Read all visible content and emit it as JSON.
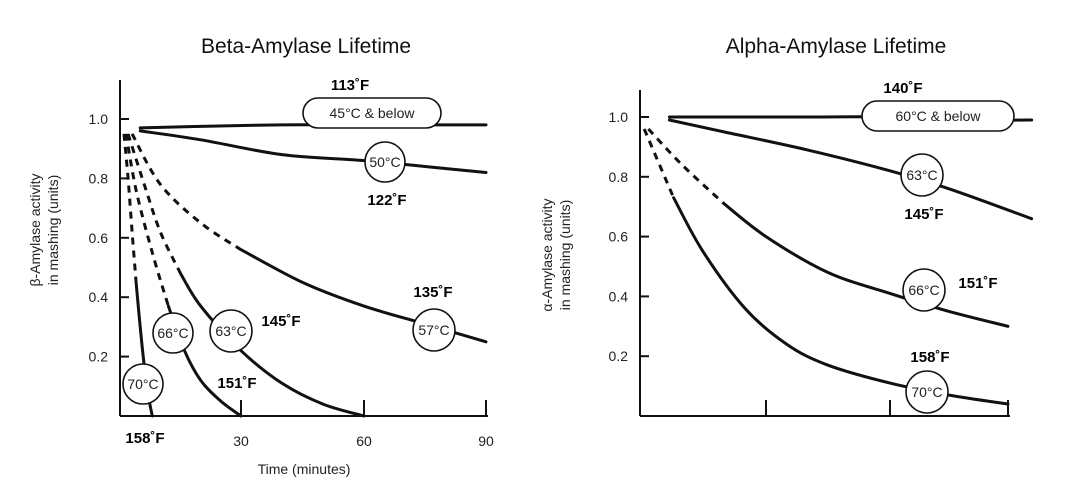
{
  "chart_data": [
    {
      "type": "line",
      "title": "Beta-Amylase Lifetime",
      "ylabel_line1": "β-Amylase activity",
      "ylabel_line2": "in mashing (units)",
      "xlabel": "Time (minutes)",
      "xlim": [
        0,
        90
      ],
      "ylim": [
        0,
        1.1
      ],
      "x_ticks": [
        "30",
        "60",
        "90"
      ],
      "y_ticks": [
        "1.0",
        "0.8",
        "0.6",
        "0.4",
        "0.2"
      ],
      "y_tick_values": [
        1.0,
        0.8,
        0.6,
        0.4,
        0.2
      ],
      "x_tick_values": [
        30,
        60,
        90
      ],
      "series": [
        {
          "name": "45°C & below",
          "fahrenheit": "113˚F",
          "x": [
            5,
            20,
            40,
            60,
            75,
            90
          ],
          "y": [
            0.97,
            0.975,
            0.98,
            0.98,
            0.98,
            0.98
          ]
        },
        {
          "name": "50°C",
          "fahrenheit": "122˚F",
          "x": [
            5,
            20,
            40,
            60,
            75,
            90
          ],
          "y": [
            0.96,
            0.93,
            0.88,
            0.86,
            0.84,
            0.82
          ]
        },
        {
          "name": "57°C",
          "fahrenheit": "135˚F",
          "x": [
            3,
            10,
            20,
            30,
            45,
            60,
            75,
            90
          ],
          "y": [
            0.95,
            0.78,
            0.65,
            0.56,
            0.45,
            0.37,
            0.31,
            0.25
          ]
        },
        {
          "name": "63°C",
          "fahrenheit": "145˚F",
          "x": [
            2,
            6,
            10,
            15,
            20,
            30,
            40,
            50,
            60
          ],
          "y": [
            0.95,
            0.78,
            0.62,
            0.48,
            0.37,
            0.22,
            0.11,
            0.04,
            0.0
          ]
        },
        {
          "name": "66°C",
          "fahrenheit": "151˚F",
          "x": [
            1.5,
            4,
            8,
            12,
            16,
            20,
            25,
            30
          ],
          "y": [
            0.95,
            0.76,
            0.55,
            0.37,
            0.22,
            0.12,
            0.05,
            0.0
          ]
        },
        {
          "name": "70°C",
          "fahrenheit": "158˚F",
          "x": [
            1,
            2,
            3,
            4,
            5,
            6,
            7,
            8
          ],
          "y": [
            0.95,
            0.8,
            0.62,
            0.45,
            0.3,
            0.17,
            0.07,
            0.0
          ]
        }
      ]
    },
    {
      "type": "line",
      "title": "Alpha-Amylase Lifetime",
      "ylabel_line1": "α-Amylase activity",
      "ylabel_line2": "in mashing (units)",
      "xlabel": "",
      "xlim": [
        0,
        90
      ],
      "ylim": [
        0,
        1.1
      ],
      "x_ticks": [
        "",
        "",
        ""
      ],
      "y_ticks": [
        "1.0",
        "0.8",
        "0.6",
        "0.4",
        "0.2"
      ],
      "y_tick_values": [
        1.0,
        0.8,
        0.6,
        0.4,
        0.2
      ],
      "x_tick_values": [
        30,
        60,
        90
      ],
      "series": [
        {
          "name": "60°C & below",
          "fahrenheit": "140˚F",
          "x": [
            7,
            20,
            40,
            60,
            75,
            96
          ],
          "y": [
            1.0,
            1.0,
            1.0,
            1.0,
            0.99,
            0.99
          ]
        },
        {
          "name": "63°C",
          "fahrenheit": "145˚F",
          "x": [
            7,
            20,
            40,
            60,
            75,
            96
          ],
          "y": [
            0.99,
            0.95,
            0.89,
            0.82,
            0.76,
            0.66
          ]
        },
        {
          "name": "66°C",
          "fahrenheit": "151˚F",
          "x": [
            2,
            10,
            20,
            30,
            45,
            60,
            75,
            90
          ],
          "y": [
            0.96,
            0.84,
            0.71,
            0.6,
            0.48,
            0.41,
            0.35,
            0.3
          ]
        },
        {
          "name": "70°C",
          "fahrenheit": "158˚F",
          "x": [
            1,
            8,
            15,
            25,
            35,
            45,
            60,
            75,
            90
          ],
          "y": [
            0.96,
            0.73,
            0.55,
            0.36,
            0.24,
            0.17,
            0.11,
            0.07,
            0.04
          ]
        }
      ]
    }
  ]
}
